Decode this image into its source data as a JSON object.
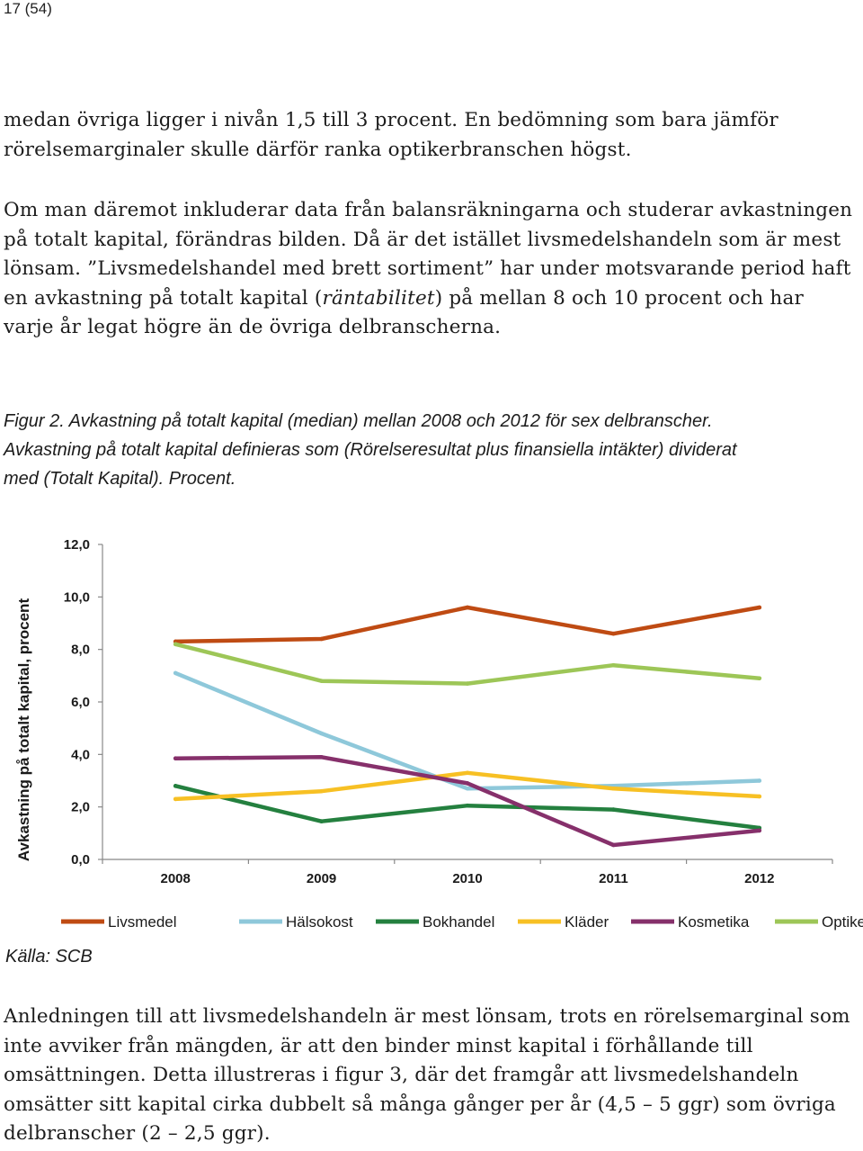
{
  "page_number": "17 (54)",
  "paragraphs": {
    "p1": "medan övriga ligger i nivån 1,5 till 3 procent. En bedömning som bara jämför rörelsemarginaler skulle därför ranka optikerbranschen högst.",
    "p2_before": "Om man däremot inkluderar data från balansräkningarna och studerar avkastningen på totalt kapital, förändras bilden. Då är det istället livsmedelshandeln som är mest lönsam. ”Livsmedelshandel med brett sortiment” har under motsvarande period haft en avkastning på totalt kapital (",
    "p2_italic": "räntabilitet",
    "p2_after": ") på mellan 8 och 10 procent och har varje år legat högre än de övriga delbranscherna.",
    "p3": "Anledningen till att livsmedelshandeln är mest lönsam, trots en rörelsemarginal som inte avviker från mängden, är att den binder minst kapital i förhållande till omsättningen. Detta illustreras i figur 3, där det framgår att livsmedelshandeln omsätter sitt kapital cirka dubbelt så många gånger per år (4,5 – 5 ggr) som övriga delbranscher (2 – 2,5 ggr)."
  },
  "caption": {
    "line1": "Figur 2. Avkastning på totalt kapital (median) mellan 2008 och 2012 för sex delbranscher.",
    "line2": "Avkastning på totalt kapital definieras som (Rörelseresultat plus finansiella intäkter) dividerat",
    "line3": "med (Totalt Kapital). Procent."
  },
  "source": "Källa: SCB",
  "chart_data": {
    "type": "line",
    "title": "",
    "xlabel": "",
    "ylabel": "Avkastning på totalt kapital, procent",
    "categories": [
      "2008",
      "2009",
      "2010",
      "2011",
      "2012"
    ],
    "ylim": [
      0,
      12
    ],
    "yticks": [
      "0,0",
      "2,0",
      "4,0",
      "6,0",
      "8,0",
      "10,0",
      "12,0"
    ],
    "grid": false,
    "legend_position": "bottom",
    "series": [
      {
        "name": "Livsmedel",
        "color": "#bf4b13",
        "values": [
          8.3,
          8.4,
          9.6,
          8.6,
          9.6
        ]
      },
      {
        "name": "Hälsokost",
        "color": "#8ec8da",
        "values": [
          7.1,
          4.8,
          2.7,
          2.8,
          3.0
        ]
      },
      {
        "name": "Bokhandel",
        "color": "#24803f",
        "values": [
          2.8,
          1.45,
          2.05,
          1.9,
          1.2
        ]
      },
      {
        "name": "Kläder",
        "color": "#f7c024",
        "values": [
          2.3,
          2.6,
          3.3,
          2.7,
          2.4
        ]
      },
      {
        "name": "Kosmetika",
        "color": "#86306b",
        "values": [
          3.85,
          3.9,
          2.9,
          0.55,
          1.1
        ]
      },
      {
        "name": "Optiker",
        "color": "#9dc657",
        "values": [
          8.2,
          6.8,
          6.7,
          7.4,
          6.9
        ]
      }
    ]
  }
}
